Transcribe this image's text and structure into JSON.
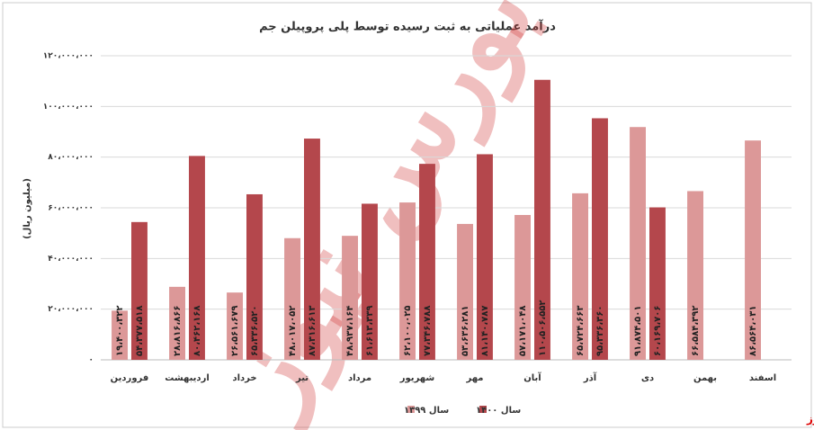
{
  "chart_data": {
    "type": "bar",
    "title": "درآمد عملیاتی به ثبت رسیده توسط پلی پروپیلن جم",
    "y_label": "(میلیون ریال)",
    "watermark": "بورس نیوز",
    "source": "بورس نیوز",
    "categories": [
      "فروردین",
      "اردیبهشت",
      "خرداد",
      "تیر",
      "مرداد",
      "شهریور",
      "مهر",
      "آبان",
      "آذر",
      "دی",
      "بهمن",
      "اسفند"
    ],
    "series": [
      {
        "name": "سال ۱۳۹۹",
        "color": "#dc9898",
        "values": [
          19400322,
          28816866,
          26561679,
          48017052,
          48937164,
          62100025,
          53636281,
          57171048,
          65724663,
          91874501,
          66584392,
          86564031
        ],
        "value_labels": [
          "۱۹،۴۰۰،۳۲۲",
          "۲۸،۸۱۶،۸۶۶",
          "۲۶،۵۶۱،۶۷۹",
          "۴۸،۰۱۷،۰۵۲",
          "۴۸،۹۳۷،۱۶۴",
          "۶۲،۱۰۰،۰۲۵",
          "۵۳،۶۳۶،۲۸۱",
          "۵۷،۱۷۱،۰۴۸",
          "۶۵،۷۲۴،۶۶۳",
          "۹۱،۸۷۴،۵۰۱",
          "۶۶،۵۸۴،۳۹۲",
          "۸۶،۵۶۴،۰۳۱"
        ]
      },
      {
        "name": "سال ۱۴۰۰",
        "color": "#b4474c",
        "values": [
          54377518,
          80462168,
          65336520,
          87316613,
          61613339,
          77346788,
          81140787,
          110506552,
          95336360,
          60169706,
          null,
          null
        ],
        "value_labels": [
          "۵۴،۳۷۷،۵۱۸",
          "۸۰،۴۶۲،۱۶۸",
          "۶۵،۳۳۶،۵۲۰",
          "۸۷،۳۱۶،۶۱۳",
          "۶۱،۶۱۳،۳۳۹",
          "۷۷،۳۴۶،۷۸۸",
          "۸۱،۱۴۰،۷۸۷",
          "۱۱۰،۵۰۶،۵۵۲",
          "۹۵،۳۳۶،۳۶۰",
          "۶۰،۱۶۹،۷۰۶",
          null,
          null
        ]
      }
    ],
    "ylim": [
      0,
      120000000
    ],
    "yticks": [
      {
        "value": 0,
        "label": "۰"
      },
      {
        "value": 20000000,
        "label": "۲۰،۰۰۰،۰۰۰"
      },
      {
        "value": 40000000,
        "label": "۴۰،۰۰۰،۰۰۰"
      },
      {
        "value": 60000000,
        "label": "۶۰،۰۰۰،۰۰۰"
      },
      {
        "value": 80000000,
        "label": "۸۰،۰۰۰،۰۰۰"
      },
      {
        "value": 100000000,
        "label": "۱۰۰،۰۰۰،۰۰۰"
      },
      {
        "value": 120000000,
        "label": "۱۲۰،۰۰۰،۰۰۰"
      }
    ],
    "grid": true
  }
}
